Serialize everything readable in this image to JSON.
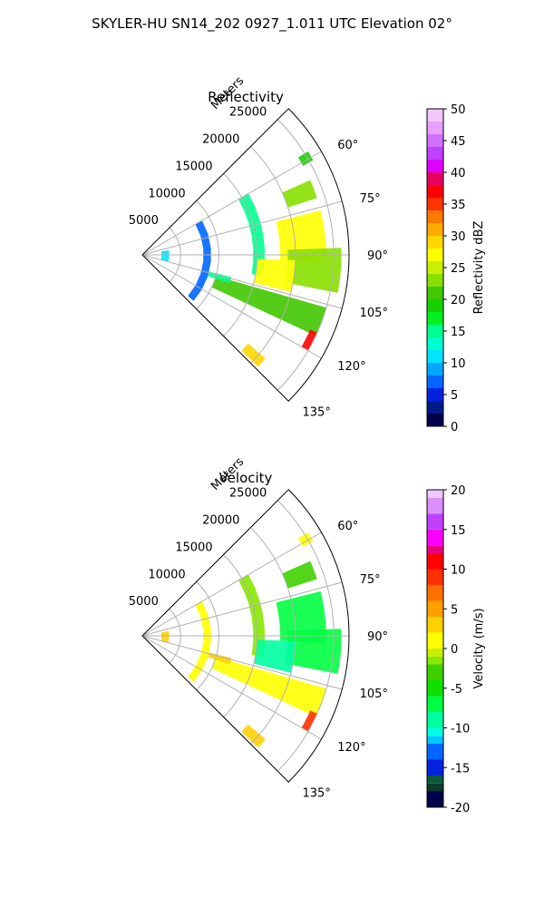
{
  "figure": {
    "title": "SKYLER-HU  SN14_202  0927_1.011 UTC Elevation 02°"
  },
  "chart_data": [
    {
      "type": "heatmap",
      "title": "Reflectivity",
      "radial_axis_label": "Meters",
      "radial_ticks": [
        5000,
        10000,
        15000,
        20000,
        25000
      ],
      "radial_tick_labels": [
        "5000",
        "10000",
        "15000",
        "20000",
        "25000"
      ],
      "rlim": [
        0,
        27000
      ],
      "angular_ticks": [
        60,
        75,
        90,
        105,
        120,
        135
      ],
      "angular_tick_labels": [
        "60°",
        "75°",
        "90°",
        "105°",
        "120°",
        "135°"
      ],
      "azimuth_range_deg": [
        45,
        135
      ],
      "grid": true,
      "colorbar": {
        "label": "Reflectivity dBZ",
        "min": 0,
        "max": 50,
        "ticks": [
          0,
          5,
          10,
          15,
          20,
          25,
          30,
          35,
          40,
          45,
          50
        ],
        "tick_labels": [
          "0",
          "5",
          "10",
          "15",
          "20",
          "25",
          "30",
          "35",
          "40",
          "45",
          "50"
        ]
      },
      "features": [
        {
          "az": [
            58,
            61
          ],
          "r": [
            24000,
            25500
          ],
          "value": 18
        },
        {
          "az": [
            66,
            72
          ],
          "r": [
            20000,
            24000
          ],
          "value": 22
        },
        {
          "az": [
            60,
            100
          ],
          "r": [
            14500,
            16000
          ],
          "value": 14
        },
        {
          "az": [
            60,
            132
          ],
          "r": [
            8000,
            9000
          ],
          "value": 6
        },
        {
          "az": [
            80,
            105
          ],
          "r": [
            2500,
            3500
          ],
          "value": 10
        },
        {
          "az": [
            76,
            92
          ],
          "r": [
            18000,
            24000
          ],
          "value": 27
        },
        {
          "az": [
            88,
            101
          ],
          "r": [
            19000,
            26000
          ],
          "value": 23
        },
        {
          "az": [
            92,
            104
          ],
          "r": [
            15000,
            20000
          ],
          "value": 26
        },
        {
          "az": [
            106,
            115
          ],
          "r": [
            10000,
            25000
          ],
          "value": 20
        },
        {
          "az": [
            114,
            120
          ],
          "r": [
            24000,
            25000
          ],
          "value": 36
        },
        {
          "az": [
            130,
            134
          ],
          "r": [
            18000,
            21000
          ],
          "value": 28
        },
        {
          "az": [
            104,
            108
          ],
          "r": [
            9000,
            12000
          ],
          "value": 15
        }
      ]
    },
    {
      "type": "heatmap",
      "title": "Velocity",
      "radial_axis_label": "Meters",
      "radial_ticks": [
        5000,
        10000,
        15000,
        20000,
        25000
      ],
      "radial_tick_labels": [
        "5000",
        "10000",
        "15000",
        "20000",
        "25000"
      ],
      "rlim": [
        0,
        27000
      ],
      "angular_ticks": [
        60,
        75,
        90,
        105,
        120,
        135
      ],
      "angular_tick_labels": [
        "60°",
        "75°",
        "90°",
        "105°",
        "120°",
        "135°"
      ],
      "azimuth_range_deg": [
        45,
        135
      ],
      "grid": true,
      "colorbar": {
        "label": "Velocity (m/s)",
        "min": -20,
        "max": 20,
        "ticks": [
          -20,
          -15,
          -10,
          -5,
          0,
          5,
          10,
          15,
          20
        ],
        "tick_labels": [
          "-20",
          "-15",
          "-10",
          "-5",
          "0",
          "5",
          "10",
          "15",
          "20"
        ]
      },
      "features": [
        {
          "az": [
            58,
            61
          ],
          "r": [
            24000,
            25500
          ],
          "value": 1
        },
        {
          "az": [
            66,
            72
          ],
          "r": [
            20000,
            24000
          ],
          "value": -3
        },
        {
          "az": [
            60,
            100
          ],
          "r": [
            14500,
            16000
          ],
          "value": -2
        },
        {
          "az": [
            60,
            132
          ],
          "r": [
            8000,
            9000
          ],
          "value": 1
        },
        {
          "az": [
            80,
            105
          ],
          "r": [
            2500,
            3500
          ],
          "value": 2
        },
        {
          "az": [
            76,
            92
          ],
          "r": [
            18000,
            24000
          ],
          "value": -8
        },
        {
          "az": [
            88,
            101
          ],
          "r": [
            19000,
            26000
          ],
          "value": -7
        },
        {
          "az": [
            92,
            104
          ],
          "r": [
            15000,
            20000
          ],
          "value": -9
        },
        {
          "az": [
            106,
            115
          ],
          "r": [
            10000,
            25000
          ],
          "value": 0
        },
        {
          "az": [
            114,
            120
          ],
          "r": [
            24000,
            25000
          ],
          "value": 9
        },
        {
          "az": [
            130,
            134
          ],
          "r": [
            18000,
            21000
          ],
          "value": 2
        },
        {
          "az": [
            104,
            108
          ],
          "r": [
            9000,
            12000
          ],
          "value": 3
        }
      ]
    }
  ]
}
